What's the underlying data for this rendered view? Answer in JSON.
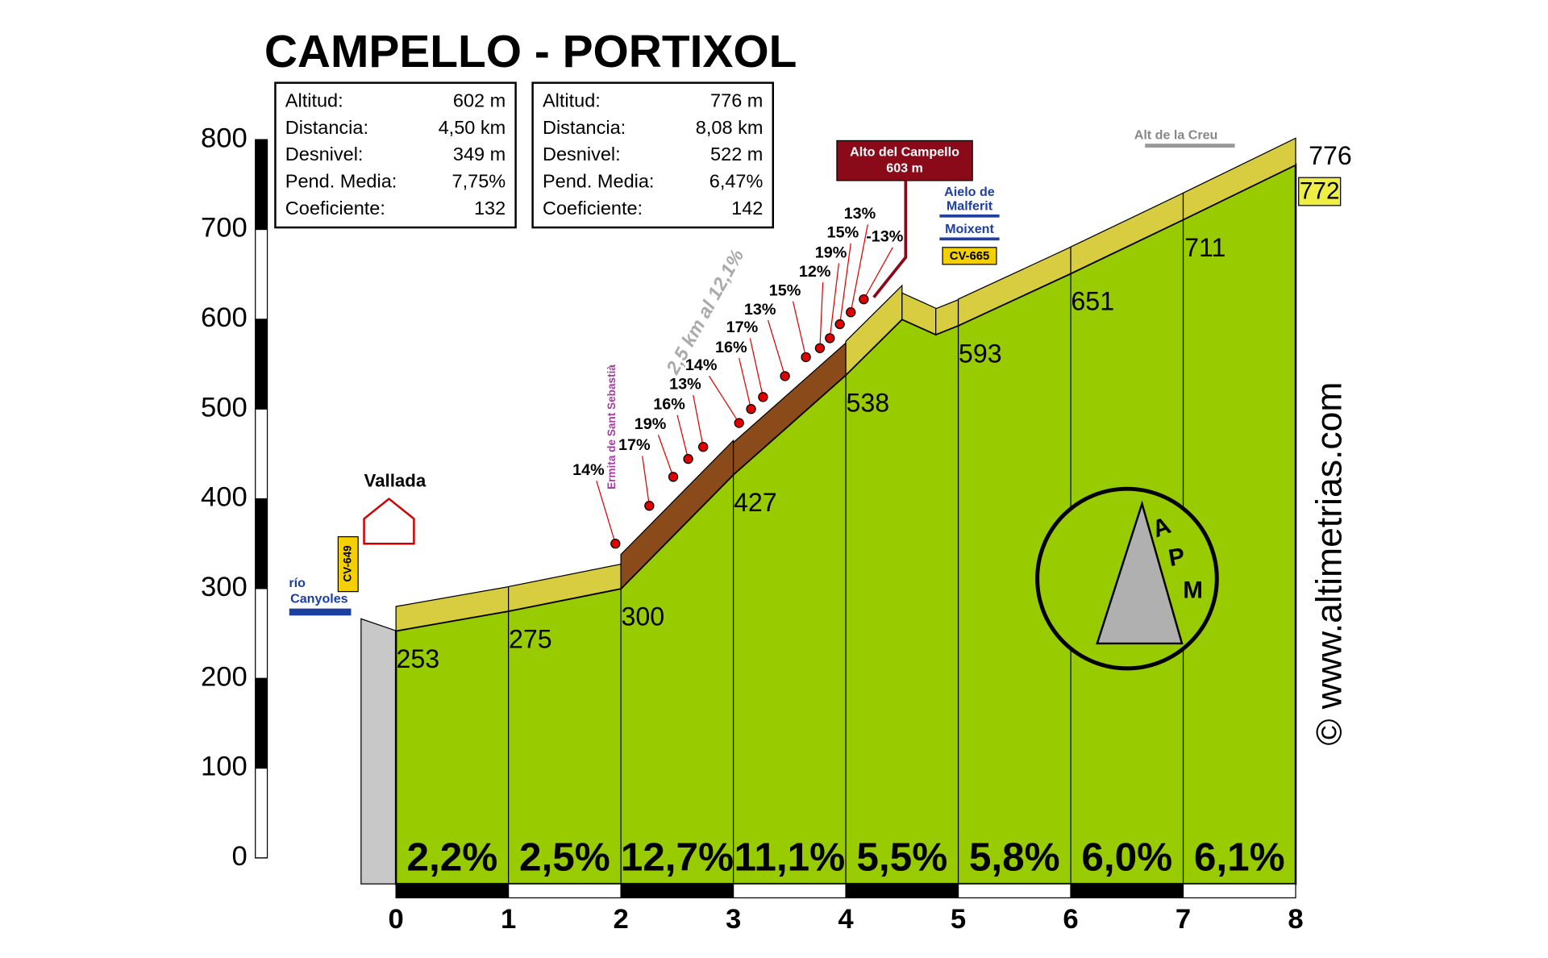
{
  "chart_data": {
    "type": "elevation-profile",
    "title": "CAMPELLO - PORTIXOL",
    "stats": [
      {
        "rows": [
          [
            "Altitud:",
            "602 m"
          ],
          [
            "Distancia:",
            "4,50 km"
          ],
          [
            "Desnivel:",
            "349 m"
          ],
          [
            "Pend. Media:",
            "7,75%"
          ],
          [
            "Coeficiente:",
            "132"
          ]
        ]
      },
      {
        "rows": [
          [
            "Altitud:",
            "776 m"
          ],
          [
            "Distancia:",
            "8,08 km"
          ],
          [
            "Desnivel:",
            "522 m"
          ],
          [
            "Pend. Media:",
            "6,47%"
          ],
          [
            "Coeficiente:",
            "142"
          ]
        ]
      }
    ],
    "x": [
      0,
      1,
      2,
      3,
      4,
      4.5,
      4.8,
      5,
      6,
      7,
      8
    ],
    "altitudes": [
      253,
      275,
      300,
      427,
      538,
      600,
      583,
      593,
      651,
      711,
      772
    ],
    "summit_altitude": 776,
    "segment_gradients": [
      2.2,
      2.5,
      12.7,
      11.1,
      5.5,
      5.8,
      6.0,
      6.1
    ],
    "value_labels": [
      "2,2%",
      "2,5%",
      "12,7%",
      "11,1%",
      "5,5%",
      "5,8%",
      "6,0%",
      "6,1%"
    ],
    "climb_labels": [
      "14%",
      "17%",
      "19%",
      "16%",
      "13%",
      "14%",
      "16%",
      "17%",
      "13%",
      "15%",
      "12%",
      "19%",
      "15%",
      "13%",
      "-13%"
    ],
    "annotations": {
      "town": "Vallada",
      "river_1": "río",
      "river_2": "Canyoles",
      "road_1": "CV-649",
      "chapel": "Ermita de Sant Sebastià",
      "climb_summary": "2,5 km al 12,1%",
      "pass_name": "Alto del Campello",
      "pass_altitude": "603 m",
      "dir_1a": "Aielo de",
      "dir_1b": "Malferit",
      "dir_2": "Moixent",
      "road_2": "CV-665",
      "summit_name": "Alt de la Creu",
      "site": "© www.altimetrias.com"
    },
    "logo_text": [
      "A",
      "P",
      "M"
    ],
    "xlim": [
      0,
      8
    ],
    "xticks": [
      0,
      1,
      2,
      3,
      4,
      5,
      6,
      7,
      8
    ],
    "ylim": [
      0,
      800
    ],
    "yticks": [
      0,
      100,
      200,
      300,
      400,
      500,
      600,
      700,
      800
    ],
    "colors": {
      "profile": "#99cc00",
      "road_flat": "#d8cc40",
      "road_steep": "#8b4a1a",
      "marker": "#e00000"
    }
  }
}
